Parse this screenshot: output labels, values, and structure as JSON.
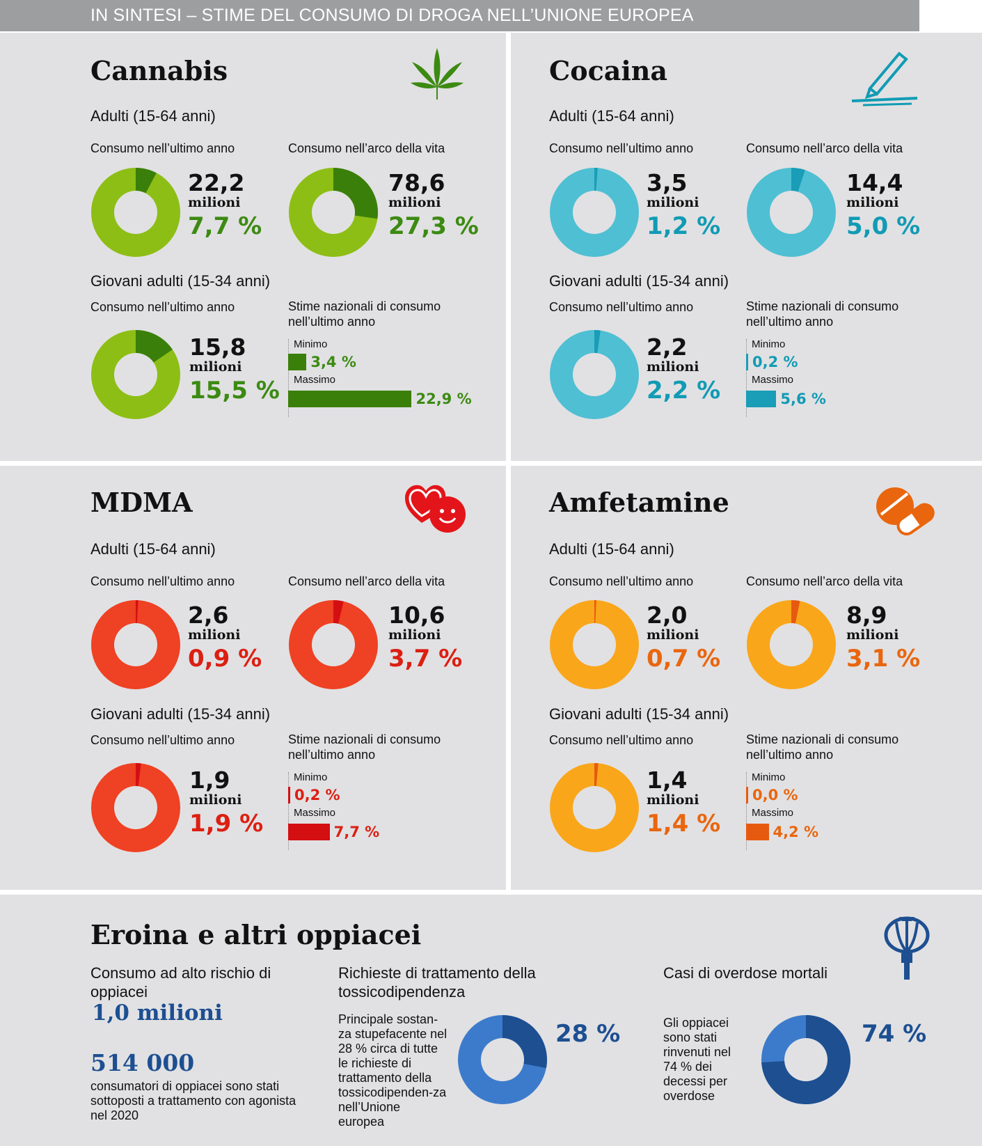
{
  "header": {
    "title": "IN SINTESI – STIME DEL CONSUMO DI DROGA NELL’UNIONE EUROPEA"
  },
  "labels": {
    "adults": "Adulti (15-64 anni)",
    "young": "Giovani adulti (15-34 anni)",
    "last_year": "Consumo nell’ultimo anno",
    "lifetime": "Consumo nell’arco della vita",
    "national_1": "Stime nazionali di consumo",
    "national_2": "nell’ultimo anno",
    "min": "Minimo",
    "max": "Massimo",
    "milioni": "milioni"
  },
  "colors": {
    "cannabis_fill": "#8dbe15",
    "cannabis_slice": "#3b7f0b",
    "cannabis_text": "#3c8a12",
    "cocaina_fill": "#4fbfd3",
    "cocaina_slice": "#1a9db6",
    "cocaina_text": "#119bb4",
    "mdma_fill": "#ef4123",
    "mdma_slice": "#d40f12",
    "mdma_text": "#dc1f12",
    "amf_fill": "#faa61a",
    "amf_slice": "#e65a10",
    "amf_text": "#e9660e",
    "eroina_dark": "#1d4f91",
    "eroina_light": "#3c7bcb"
  },
  "icons": {
    "cannabis": "cannabis-leaf-icon",
    "cocaina": "cocaine-straw-icon",
    "mdma": "heart-smiley-icon",
    "amfetamine": "pill-capsule-icon",
    "eroina": "poppy-icon"
  },
  "chart_data": [
    {
      "type": "donut",
      "drug": "Cannabis",
      "title": "Cannabis",
      "adults": {
        "last_year": {
          "millions": "22,2",
          "percent": "7,7 %",
          "value": 7.7
        },
        "lifetime": {
          "millions": "78,6",
          "percent": "27,3 %",
          "value": 27.3
        }
      },
      "young": {
        "last_year": {
          "millions": "15,8",
          "percent": "15,5 %",
          "value": 15.5
        },
        "national_min": {
          "label": "3,4 %",
          "value": 3.4
        },
        "national_max": {
          "label": "22,9 %",
          "value": 22.9
        }
      }
    },
    {
      "type": "donut",
      "drug": "Cocaina",
      "title": "Cocaina",
      "adults": {
        "last_year": {
          "millions": "3,5",
          "percent": "1,2 %",
          "value": 1.2
        },
        "lifetime": {
          "millions": "14,4",
          "percent": "5,0 %",
          "value": 5.0
        }
      },
      "young": {
        "last_year": {
          "millions": "2,2",
          "percent": "2,2 %",
          "value": 2.2
        },
        "national_min": {
          "label": "0,2 %",
          "value": 0.2
        },
        "national_max": {
          "label": "5,6 %",
          "value": 5.6
        }
      }
    },
    {
      "type": "donut",
      "drug": "MDMA",
      "title": "MDMA",
      "adults": {
        "last_year": {
          "millions": "2,6",
          "percent": "0,9 %",
          "value": 0.9
        },
        "lifetime": {
          "millions": "10,6",
          "percent": "3,7 %",
          "value": 3.7
        }
      },
      "young": {
        "last_year": {
          "millions": "1,9",
          "percent": "1,9 %",
          "value": 1.9
        },
        "national_min": {
          "label": "0,2 %",
          "value": 0.2
        },
        "national_max": {
          "label": "7,7 %",
          "value": 7.7
        }
      }
    },
    {
      "type": "donut",
      "drug": "Amfetamine",
      "title": "Amfetamine",
      "adults": {
        "last_year": {
          "millions": "2,0",
          "percent": "0,7 %",
          "value": 0.7
        },
        "lifetime": {
          "millions": "8,9",
          "percent": "3,1 %",
          "value": 3.1
        }
      },
      "young": {
        "last_year": {
          "millions": "1,4",
          "percent": "1,4 %",
          "value": 1.4
        },
        "national_min": {
          "label": "0,0 %",
          "value": 0.0
        },
        "national_max": {
          "label": "4,2 %",
          "value": 4.2
        }
      }
    },
    {
      "type": "donut",
      "drug": "Eroina e altri oppiacei",
      "title": "Eroina e altri oppiacei",
      "high_risk": {
        "heading": "Consumo ad alto rischio di oppiacei",
        "value": "1,0 milioni"
      },
      "treatment_agonist": {
        "value": "514 000",
        "text": "consumatori di oppiacei sono stati sottoposti a trattamento con agonista nel 2020"
      },
      "treatment_requests": {
        "heading": "Richieste di trattamento della tossicodipendenza",
        "text": "Principale sostan-za stupefacente nel 28 % circa di tutte le richieste di trattamento della tossicodipenden-za nell’Unione europea",
        "percent": "28 %",
        "value": 28
      },
      "overdoses": {
        "heading": "Casi di overdose mortali",
        "text": "Gli oppiacei sono stati rinvenuti nel 74 % dei decessi per overdose",
        "percent": "74 %",
        "value": 74
      }
    }
  ]
}
